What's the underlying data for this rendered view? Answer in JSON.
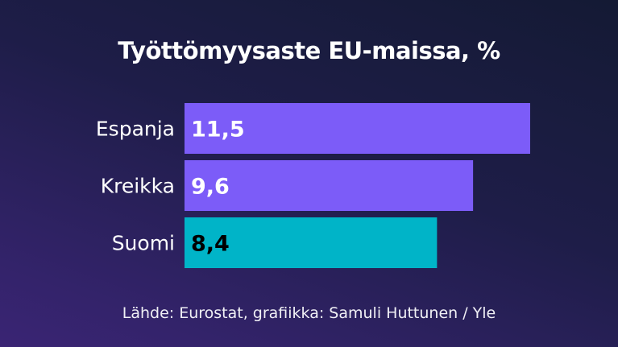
{
  "chart_data": {
    "type": "bar",
    "orientation": "horizontal",
    "title": "Työttömyysaste EU-maissa, %",
    "categories": [
      "Espanja",
      "Kreikka",
      "Suomi"
    ],
    "values": [
      11.5,
      9.6,
      8.4
    ],
    "value_labels": [
      "11,5",
      "9,6",
      "8,4"
    ],
    "bar_colors": [
      "#7c5cf8",
      "#7c5cf8",
      "#00b4c8"
    ],
    "label_colors": [
      "#ffffff",
      "#ffffff",
      "#000000"
    ],
    "xlim": [
      0,
      11.5
    ],
    "grid": false,
    "source": "Lähde: Eurostat, grafiikka: Samuli Huttunen / Yle"
  }
}
